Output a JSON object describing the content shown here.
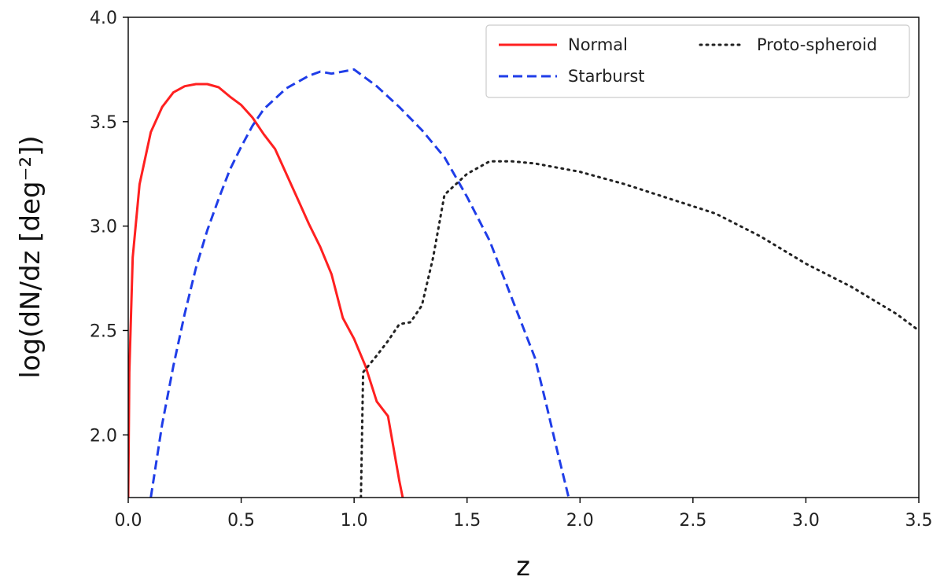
{
  "chart_data": {
    "type": "line",
    "title": "",
    "xlabel": "z",
    "ylabel": "log(dN/dz [deg⁻²])",
    "xlim": [
      0.0,
      3.5
    ],
    "ylim": [
      1.7,
      4.0
    ],
    "xticks": [
      "0.0",
      "0.5",
      "1.0",
      "1.5",
      "2.0",
      "2.5",
      "3.0",
      "3.5"
    ],
    "yticks": [
      "2.0",
      "2.5",
      "3.0",
      "3.5",
      "4.0"
    ],
    "grid": false,
    "legend_position": "top-right",
    "series": [
      {
        "name": "Normal",
        "color": "#ff2020",
        "style": "solid",
        "points": [
          [
            0.0,
            1.7
          ],
          [
            0.005,
            2.3
          ],
          [
            0.02,
            2.85
          ],
          [
            0.05,
            3.2
          ],
          [
            0.1,
            3.45
          ],
          [
            0.15,
            3.57
          ],
          [
            0.2,
            3.64
          ],
          [
            0.25,
            3.67
          ],
          [
            0.3,
            3.68
          ],
          [
            0.35,
            3.68
          ],
          [
            0.4,
            3.665
          ],
          [
            0.45,
            3.62
          ],
          [
            0.5,
            3.58
          ],
          [
            0.55,
            3.52
          ],
          [
            0.6,
            3.44
          ],
          [
            0.65,
            3.37
          ],
          [
            0.7,
            3.25
          ],
          [
            0.75,
            3.13
          ],
          [
            0.8,
            3.01
          ],
          [
            0.85,
            2.9
          ],
          [
            0.9,
            2.77
          ],
          [
            0.95,
            2.56
          ],
          [
            1.0,
            2.46
          ],
          [
            1.05,
            2.33
          ],
          [
            1.1,
            2.16
          ],
          [
            1.15,
            2.09
          ],
          [
            1.2,
            1.78
          ],
          [
            1.215,
            1.7
          ]
        ]
      },
      {
        "name": "Starburst",
        "color": "#1f3de8",
        "style": "dashed",
        "points": [
          [
            0.1,
            1.7
          ],
          [
            0.15,
            2.05
          ],
          [
            0.2,
            2.33
          ],
          [
            0.25,
            2.58
          ],
          [
            0.3,
            2.8
          ],
          [
            0.35,
            2.98
          ],
          [
            0.4,
            3.13
          ],
          [
            0.45,
            3.27
          ],
          [
            0.5,
            3.38
          ],
          [
            0.55,
            3.48
          ],
          [
            0.6,
            3.56
          ],
          [
            0.7,
            3.66
          ],
          [
            0.8,
            3.72
          ],
          [
            0.85,
            3.74
          ],
          [
            0.9,
            3.73
          ],
          [
            1.0,
            3.75
          ],
          [
            1.1,
            3.67
          ],
          [
            1.2,
            3.57
          ],
          [
            1.3,
            3.46
          ],
          [
            1.4,
            3.33
          ],
          [
            1.5,
            3.14
          ],
          [
            1.6,
            2.93
          ],
          [
            1.7,
            2.65
          ],
          [
            1.8,
            2.37
          ],
          [
            1.85,
            2.15
          ],
          [
            1.9,
            1.92
          ],
          [
            1.95,
            1.7
          ]
        ]
      },
      {
        "name": "Proto-spheroid",
        "color": "#222222",
        "style": "dotted",
        "points": [
          [
            1.03,
            1.7
          ],
          [
            1.035,
            2.0
          ],
          [
            1.04,
            2.3
          ],
          [
            1.1,
            2.38
          ],
          [
            1.15,
            2.45
          ],
          [
            1.2,
            2.53
          ],
          [
            1.25,
            2.54
          ],
          [
            1.3,
            2.62
          ],
          [
            1.35,
            2.85
          ],
          [
            1.4,
            3.15
          ],
          [
            1.5,
            3.25
          ],
          [
            1.6,
            3.31
          ],
          [
            1.7,
            3.31
          ],
          [
            1.8,
            3.3
          ],
          [
            2.0,
            3.26
          ],
          [
            2.2,
            3.2
          ],
          [
            2.4,
            3.13
          ],
          [
            2.6,
            3.06
          ],
          [
            2.8,
            2.95
          ],
          [
            3.0,
            2.82
          ],
          [
            3.2,
            2.71
          ],
          [
            3.4,
            2.58
          ],
          [
            3.5,
            2.5
          ]
        ]
      }
    ]
  }
}
